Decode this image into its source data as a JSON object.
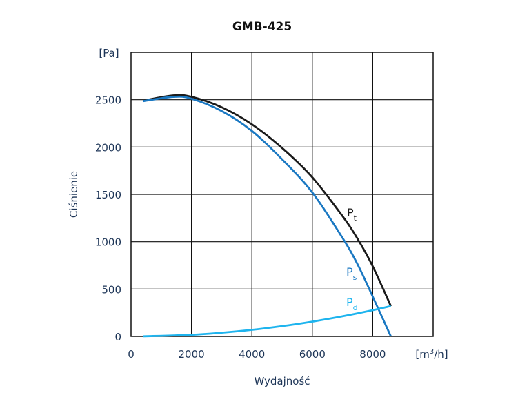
{
  "chart_data": {
    "type": "line",
    "title": "GMB-425",
    "xlabel": "Wydajność",
    "ylabel": "Ciśnienie",
    "xunit": "[m3/h]",
    "yunit": "[Pa]",
    "xlim": [
      0,
      10000
    ],
    "ylim": [
      0,
      3000
    ],
    "xticks": [
      0,
      2000,
      4000,
      6000,
      8000
    ],
    "yticks": [
      0,
      500,
      1000,
      1500,
      2000,
      2500
    ],
    "grid": true,
    "series": [
      {
        "name": "P",
        "sub": "t",
        "color": "#1a1a1a",
        "x": [
          400,
          1400,
          2000,
          3000,
          4000,
          5000,
          6000,
          7000,
          7500,
          8000,
          8600
        ],
        "y": [
          2490,
          2545,
          2530,
          2420,
          2240,
          1990,
          1680,
          1270,
          1030,
          740,
          320
        ]
      },
      {
        "name": "P",
        "sub": "s",
        "color": "#1a78c2",
        "x": [
          400,
          1400,
          2000,
          3000,
          4000,
          5000,
          6000,
          7000,
          7500,
          8000,
          8600
        ],
        "y": [
          2485,
          2530,
          2510,
          2380,
          2170,
          1870,
          1520,
          1040,
          760,
          420,
          0
        ]
      },
      {
        "name": "P",
        "sub": "d",
        "color": "#1eb4ee",
        "x": [
          400,
          2000,
          3000,
          4000,
          5000,
          6000,
          7000,
          8000,
          8600
        ],
        "y": [
          1,
          17,
          39,
          69,
          108,
          156,
          212,
          277,
          320
        ]
      }
    ]
  }
}
